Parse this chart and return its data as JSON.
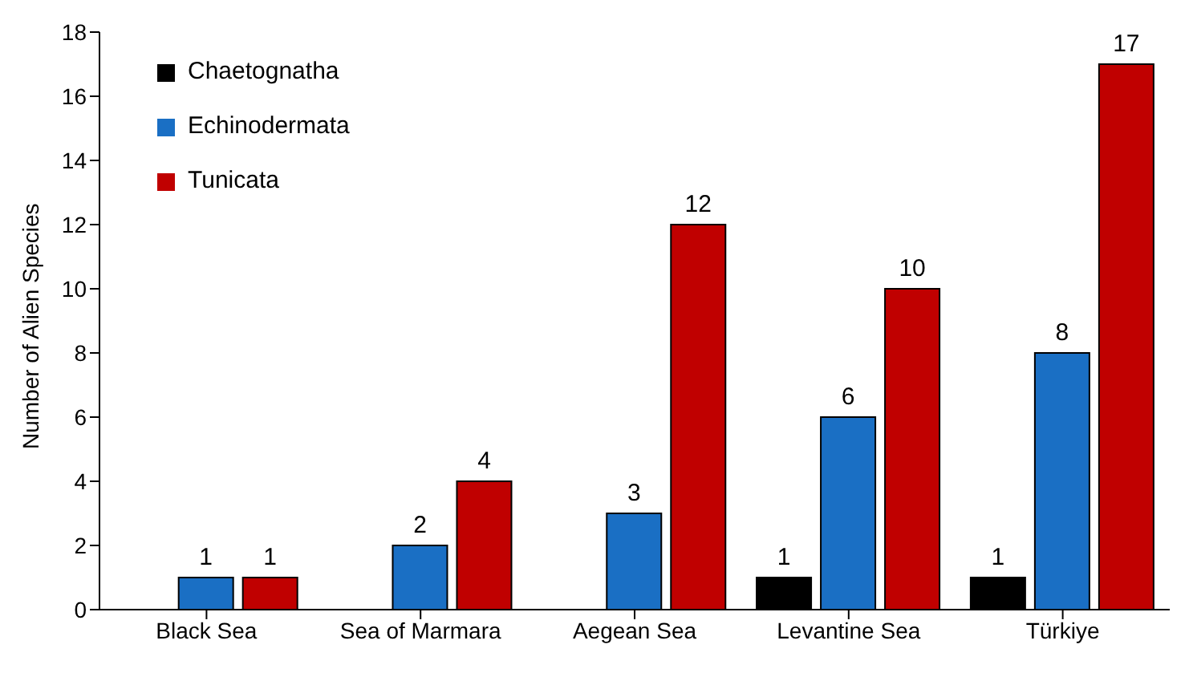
{
  "chart_data": {
    "type": "bar",
    "ylabel": "Number of Alien Species",
    "categories": [
      "Black Sea",
      "Sea of Marmara",
      "Aegean Sea",
      "Levantine Sea",
      "Türkiye"
    ],
    "series": [
      {
        "name": "Chaetognatha",
        "color": "#000000",
        "values": [
          null,
          null,
          null,
          1,
          1
        ]
      },
      {
        "name": "Echinodermata",
        "color": "#1a6fc4",
        "values": [
          1,
          2,
          3,
          6,
          8
        ]
      },
      {
        "name": "Tunicata",
        "color": "#c00000",
        "values": [
          1,
          4,
          12,
          10,
          17
        ]
      }
    ],
    "ylim": [
      0,
      18
    ],
    "yticks": [
      0,
      2,
      4,
      6,
      8,
      10,
      12,
      14,
      16,
      18
    ],
    "grid": false,
    "legend": "top left",
    "data_labels": true
  }
}
